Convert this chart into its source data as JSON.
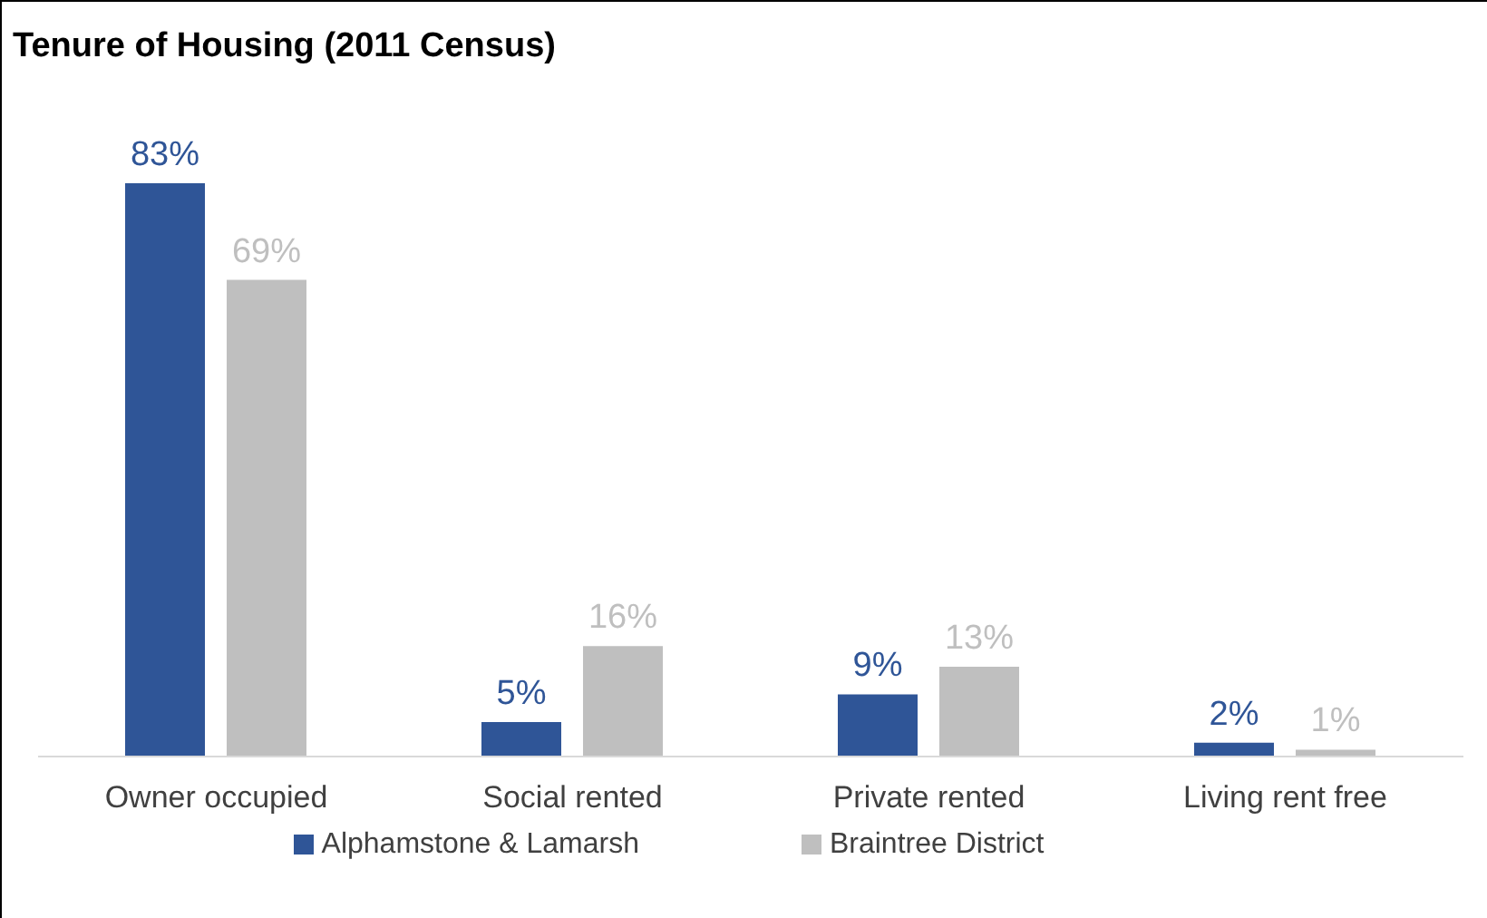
{
  "chart_data": {
    "type": "bar",
    "title": "Tenure of Housing (2011 Census)",
    "categories": [
      "Owner occupied",
      "Social rented",
      "Private rented",
      "Living rent free"
    ],
    "series": [
      {
        "name": "Alphamstone & Lamarsh",
        "color": "#2f5597",
        "values": [
          83,
          5,
          9,
          2
        ],
        "value_labels": [
          "83%",
          "5%",
          "9%",
          "2%"
        ]
      },
      {
        "name": "Braintree District",
        "color": "#bfbfbf",
        "values": [
          69,
          16,
          13,
          1
        ],
        "value_labels": [
          "69%",
          "16%",
          "13%",
          "1%"
        ]
      }
    ],
    "legend": "bottom",
    "grid": false
  }
}
